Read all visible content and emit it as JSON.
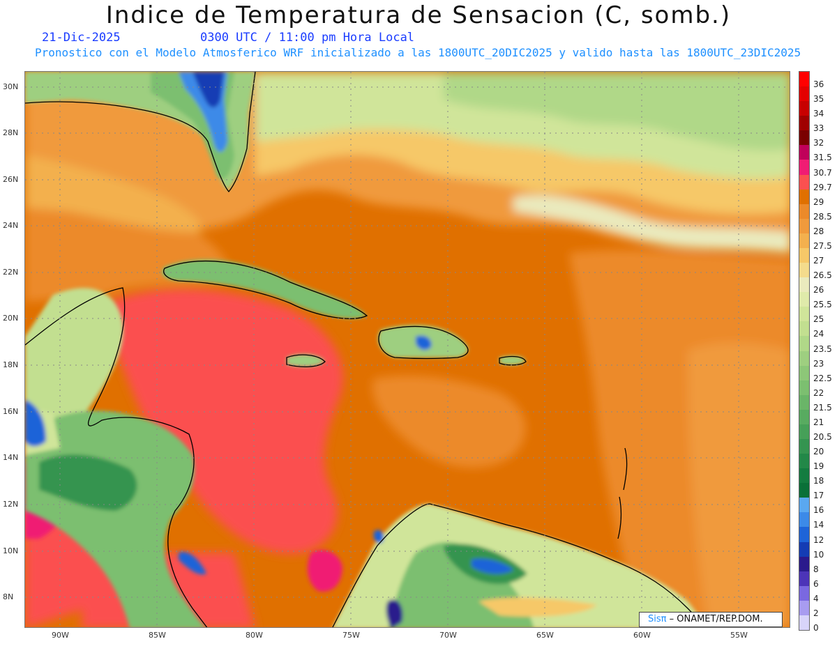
{
  "header": {
    "title": "Indice de Temperatura de Sensacion (C, somb.)",
    "date": "21-Dic-2025",
    "time": "0300 UTC / 11:00 pm Hora Local",
    "subtitle": "Pronostico con el Modelo Atmosferico WRF inicializado a las 1800UTC_20DIC2025 y valido hasta las  1800UTC_23DIC2025"
  },
  "axes": {
    "lat_labels": [
      "30N",
      "28N",
      "26N",
      "24N",
      "22N",
      "20N",
      "18N",
      "16N",
      "14N",
      "12N",
      "10N",
      "8N"
    ],
    "lon_labels": [
      "90W",
      "85W",
      "80W",
      "75W",
      "70W",
      "65W",
      "60W",
      "55W"
    ]
  },
  "legend": {
    "levels": [
      {
        "label": "36",
        "color": "#ff0000"
      },
      {
        "label": "35",
        "color": "#e40000"
      },
      {
        "label": "34",
        "color": "#c80000"
      },
      {
        "label": "33",
        "color": "#a00000"
      },
      {
        "label": "32",
        "color": "#7a0000"
      },
      {
        "label": "31.5",
        "color": "#c0005a"
      },
      {
        "label": "30.7",
        "color": "#f01c73"
      },
      {
        "label": "29.7",
        "color": "#fb5050"
      },
      {
        "label": "29",
        "color": "#e07000"
      },
      {
        "label": "28.5",
        "color": "#ec8a2a"
      },
      {
        "label": "28",
        "color": "#f09a3c"
      },
      {
        "label": "27.5",
        "color": "#f3b04e"
      },
      {
        "label": "27",
        "color": "#f6c868"
      },
      {
        "label": "26.5",
        "color": "#f4db8c"
      },
      {
        "label": "26",
        "color": "#eaeabd"
      },
      {
        "label": "25.5",
        "color": "#dfeaaa"
      },
      {
        "label": "25",
        "color": "#d0e59a"
      },
      {
        "label": "24",
        "color": "#c2df90"
      },
      {
        "label": "23.5",
        "color": "#b0d888"
      },
      {
        "label": "23",
        "color": "#9ecf80"
      },
      {
        "label": "22.5",
        "color": "#8dc778"
      },
      {
        "label": "22",
        "color": "#7cbf70"
      },
      {
        "label": "21.5",
        "color": "#6ab568"
      },
      {
        "label": "21",
        "color": "#58ab60"
      },
      {
        "label": "20.5",
        "color": "#46a058"
      },
      {
        "label": "20",
        "color": "#349450"
      },
      {
        "label": "19",
        "color": "#228848"
      },
      {
        "label": "18",
        "color": "#137c40"
      },
      {
        "label": "17",
        "color": "#0a7038"
      },
      {
        "label": "16",
        "color": "#5aa8f0"
      },
      {
        "label": "14",
        "color": "#3c8ae8"
      },
      {
        "label": "12",
        "color": "#1e64d8"
      },
      {
        "label": "10",
        "color": "#143cb4"
      },
      {
        "label": "8",
        "color": "#2a1a8c"
      },
      {
        "label": "6",
        "color": "#4c34b8"
      },
      {
        "label": "4",
        "color": "#7a68e0"
      },
      {
        "label": "2",
        "color": "#a89cf0"
      },
      {
        "label": "0",
        "color": "#d8d4fa"
      }
    ]
  },
  "credit": {
    "logo": "Sisπ",
    "text": " – ONAMET/REP.DOM."
  }
}
